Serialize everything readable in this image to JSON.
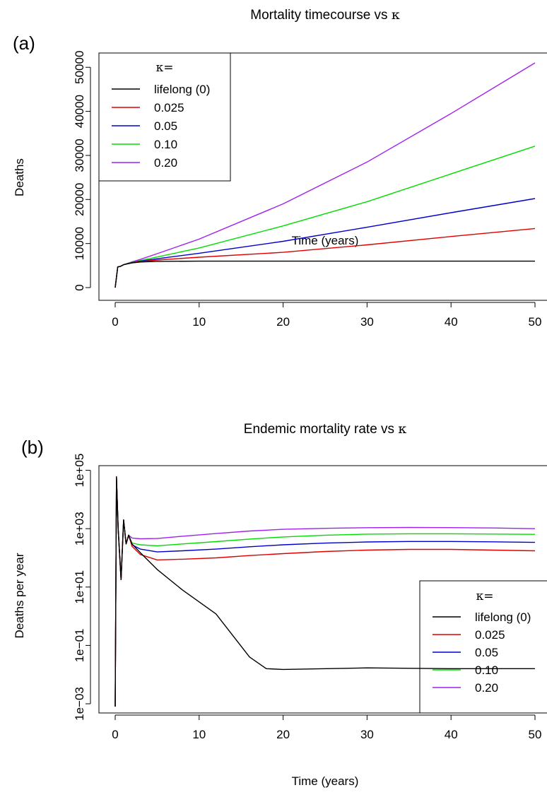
{
  "chart_data": [
    {
      "panel_label": "(a)",
      "type": "line",
      "title": "Mortality timecourse vs",
      "title_symbol": "κ",
      "xlabel": "Time (years)",
      "ylabel": "Deaths",
      "xlim": [
        0,
        50
      ],
      "ylim": [
        0,
        51000
      ],
      "y_scale": "linear",
      "x_ticks": [
        "0",
        "10",
        "20",
        "30",
        "40",
        "50"
      ],
      "y_ticks": [
        "0",
        "10000",
        "20000",
        "30000",
        "40000",
        "50000"
      ],
      "legend": {
        "title": "κ=",
        "position": "top-left"
      },
      "series": [
        {
          "name": "lifelong (0)",
          "color": "#000000",
          "x": [
            0,
            0.3,
            0.6,
            1,
            2,
            3,
            5,
            10,
            20,
            30,
            40,
            50
          ],
          "y": [
            0,
            4700,
            4800,
            5200,
            5600,
            5800,
            5950,
            6000,
            6000,
            6000,
            6000,
            6000
          ]
        },
        {
          "name": "0.025",
          "color": "#df0000",
          "x": [
            0,
            0.3,
            0.6,
            1,
            2,
            3,
            5,
            10,
            20,
            30,
            40,
            50
          ],
          "y": [
            0,
            4700,
            4800,
            5200,
            5650,
            5900,
            6250,
            6900,
            8000,
            9700,
            11600,
            13400
          ]
        },
        {
          "name": "0.05",
          "color": "#0000cd",
          "x": [
            0,
            0.3,
            0.6,
            1,
            2,
            3,
            5,
            10,
            20,
            30,
            40,
            50
          ],
          "y": [
            0,
            4700,
            4800,
            5200,
            5700,
            6000,
            6550,
            7800,
            10500,
            13700,
            17000,
            20200
          ]
        },
        {
          "name": "0.10",
          "color": "#00dd00",
          "x": [
            0,
            0.3,
            0.6,
            1,
            2,
            3,
            5,
            10,
            20,
            30,
            40,
            50
          ],
          "y": [
            0,
            4700,
            4800,
            5200,
            5750,
            6150,
            6950,
            9000,
            14000,
            19500,
            25800,
            32100
          ]
        },
        {
          "name": "0.20",
          "color": "#a020f0",
          "x": [
            0,
            0.3,
            0.6,
            1,
            2,
            3,
            5,
            10,
            20,
            30,
            40,
            50
          ],
          "y": [
            0,
            4700,
            4800,
            5200,
            5850,
            6400,
            7700,
            11000,
            19000,
            28500,
            39500,
            51000
          ]
        }
      ]
    },
    {
      "panel_label": "(b)",
      "type": "line",
      "title": "Endemic mortality rate vs",
      "title_symbol": "κ",
      "xlabel": "Time (years)",
      "ylabel": "Deaths per year",
      "xlim": [
        0,
        50
      ],
      "ylim": [
        0.0008,
        70000
      ],
      "y_scale": "log",
      "x_ticks": [
        "0",
        "10",
        "20",
        "30",
        "40",
        "50"
      ],
      "y_ticks": [
        "1e−03",
        "1e−01",
        "1e+01",
        "1e+03",
        "1e+05"
      ],
      "legend": {
        "title": "κ=",
        "position": "bottom-right"
      },
      "series": [
        {
          "name": "lifelong (0)",
          "color": "#000000",
          "x": [
            0,
            0.15,
            0.35,
            0.7,
            1.0,
            1.3,
            1.6,
            2,
            3,
            5,
            8,
            12,
            16,
            18,
            20,
            30,
            40,
            50
          ],
          "y": [
            0.0008,
            60000,
            1000,
            18,
            2000,
            300,
            600,
            300,
            150,
            40,
            8,
            1.2,
            0.04,
            0.016,
            0.015,
            0.017,
            0.016,
            0.016
          ]
        },
        {
          "name": "0.025",
          "color": "#df0000",
          "x": [
            0,
            0.15,
            0.35,
            0.7,
            1.0,
            1.3,
            1.6,
            2,
            3,
            5,
            8,
            12,
            16,
            20,
            25,
            30,
            35,
            40,
            45,
            50
          ],
          "y": [
            0.0008,
            60000,
            1000,
            18,
            2000,
            300,
            600,
            250,
            130,
            85,
            90,
            100,
            120,
            140,
            165,
            185,
            195,
            195,
            185,
            175
          ]
        },
        {
          "name": "0.05",
          "color": "#0000cd",
          "x": [
            0,
            0.15,
            0.35,
            0.7,
            1.0,
            1.3,
            1.6,
            2,
            3,
            5,
            8,
            12,
            16,
            20,
            25,
            30,
            35,
            40,
            45,
            50
          ],
          "y": [
            0.0008,
            60000,
            1000,
            18,
            2000,
            300,
            600,
            280,
            200,
            160,
            175,
            200,
            240,
            280,
            320,
            350,
            365,
            365,
            355,
            340
          ]
        },
        {
          "name": "0.10",
          "color": "#00dd00",
          "x": [
            0,
            0.15,
            0.35,
            0.7,
            1.0,
            1.3,
            1.6,
            2,
            3,
            5,
            8,
            12,
            16,
            20,
            25,
            30,
            35,
            40,
            45,
            50
          ],
          "y": [
            0.0008,
            60000,
            1000,
            18,
            2000,
            300,
            600,
            320,
            280,
            260,
            300,
            360,
            440,
            520,
            600,
            650,
            670,
            670,
            655,
            640
          ]
        },
        {
          "name": "0.20",
          "color": "#a020f0",
          "x": [
            0,
            0.15,
            0.35,
            0.7,
            1.0,
            1.3,
            1.6,
            2,
            3,
            5,
            8,
            12,
            16,
            20,
            25,
            30,
            35,
            40,
            45,
            50
          ],
          "y": [
            0.0008,
            60000,
            1000,
            18,
            2000,
            300,
            600,
            480,
            450,
            460,
            550,
            680,
            830,
            950,
            1030,
            1080,
            1100,
            1090,
            1060,
            1000
          ]
        }
      ]
    }
  ]
}
